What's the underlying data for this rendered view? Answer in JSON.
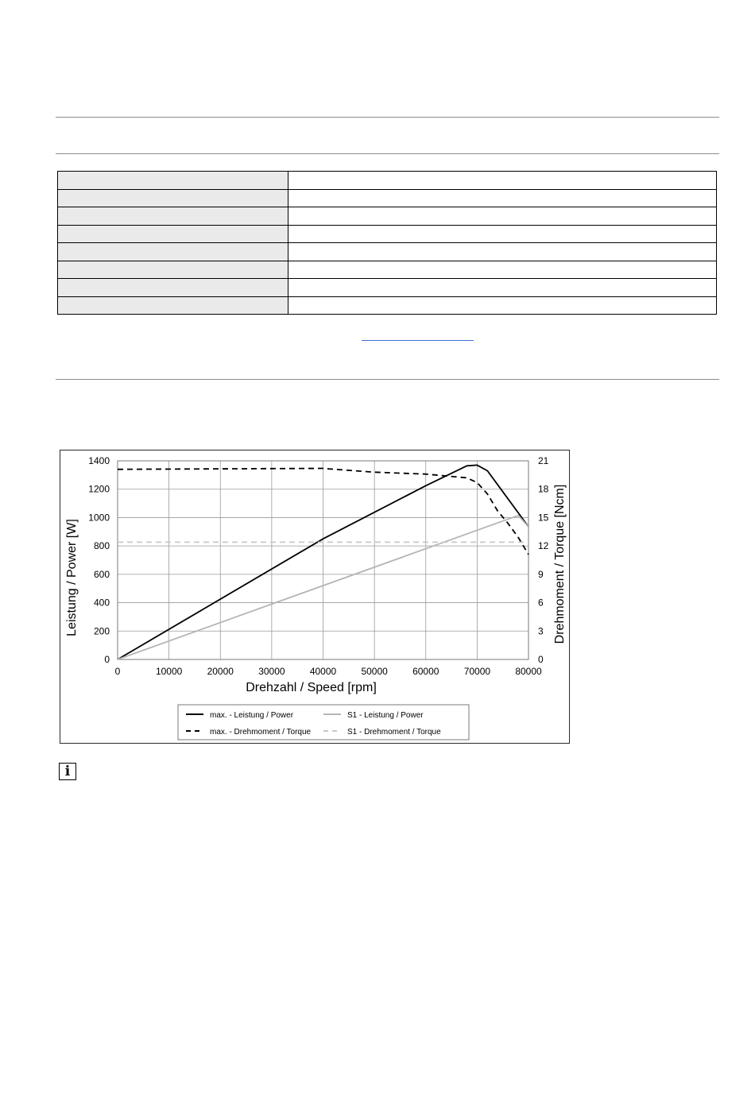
{
  "info_icon": {
    "name": "info-icon",
    "glyph": "i"
  },
  "chart_data": {
    "type": "line",
    "xlabel": "Drehzahl / Speed [rpm]",
    "ylabel": "Leistung / Power [W]",
    "y2label": "Drehmoment / Torque [Ncm]",
    "xlim": [
      0,
      80000
    ],
    "ylim": [
      0,
      1400
    ],
    "y2lim": [
      0,
      21
    ],
    "xticks": [
      "0",
      "10000",
      "20000",
      "30000",
      "40000",
      "50000",
      "60000",
      "70000",
      "80000"
    ],
    "yticks": [
      "0",
      "200",
      "400",
      "600",
      "800",
      "1000",
      "1200",
      "1400"
    ],
    "y2ticks": [
      "0",
      "3",
      "6",
      "9",
      "12",
      "15",
      "18",
      "21"
    ],
    "grid": true,
    "legend_position": "bottom",
    "series": [
      {
        "name": "max. - Leistung / Power",
        "axis": "left",
        "color": "#000000",
        "dash": "solid",
        "points": [
          [
            0,
            0
          ],
          [
            40000,
            850
          ],
          [
            60000,
            1225
          ],
          [
            68000,
            1365
          ],
          [
            70000,
            1370
          ],
          [
            72000,
            1330
          ],
          [
            80000,
            935
          ]
        ]
      },
      {
        "name": "S1 - Leistung / Power",
        "axis": "left",
        "color": "#b5b5b5",
        "dash": "solid",
        "points": [
          [
            0,
            0
          ],
          [
            78000,
            1015
          ],
          [
            80000,
            935
          ]
        ]
      },
      {
        "name": "max. - Drehmoment / Torque",
        "axis": "right",
        "color": "#000000",
        "dash": "dashed",
        "points": [
          [
            0,
            20.1
          ],
          [
            40000,
            20.2
          ],
          [
            41000,
            20.15
          ],
          [
            50000,
            19.8
          ],
          [
            60000,
            19.6
          ],
          [
            68000,
            19.2
          ],
          [
            70000,
            18.7
          ],
          [
            72000,
            17.5
          ],
          [
            74000,
            15.7
          ],
          [
            76000,
            14.4
          ],
          [
            78000,
            12.9
          ],
          [
            80000,
            11.1
          ]
        ]
      },
      {
        "name": "S1 - Drehmoment / Torque",
        "axis": "right",
        "color": "#c8c8c8",
        "dash": "dashed",
        "points": [
          [
            0,
            12.4
          ],
          [
            80000,
            12.4
          ]
        ]
      }
    ]
  }
}
